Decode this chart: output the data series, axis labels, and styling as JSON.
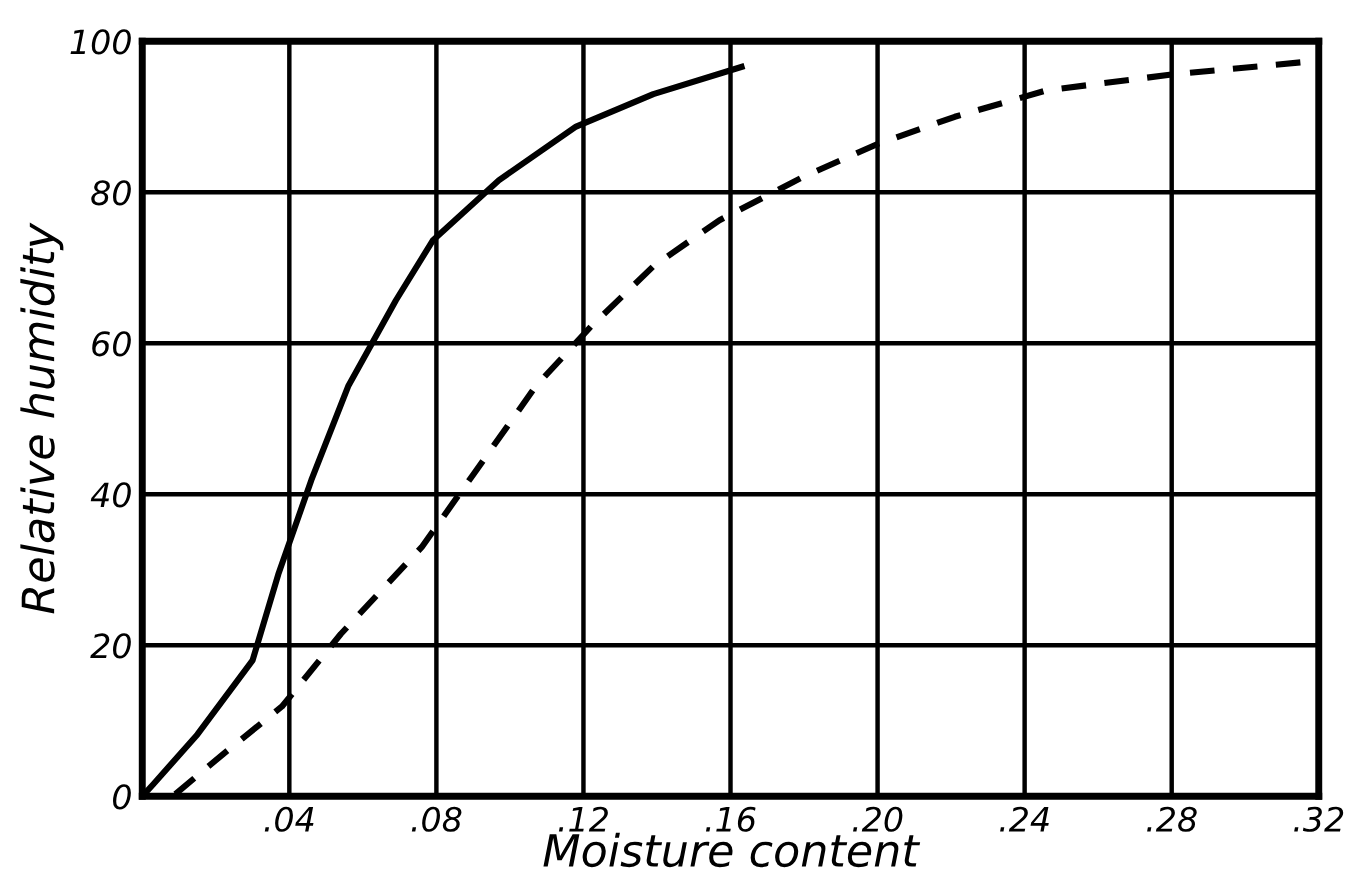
{
  "chart_data": {
    "type": "line",
    "xlabel": "Moisture content",
    "ylabel": "Relative humidity",
    "xlim": [
      0,
      0.32
    ],
    "ylim": [
      0,
      100
    ],
    "xticks": [
      {
        "value": 0.04,
        "label": ".04"
      },
      {
        "value": 0.08,
        "label": ".08"
      },
      {
        "value": 0.12,
        "label": ".12"
      },
      {
        "value": 0.16,
        "label": ".16"
      },
      {
        "value": 0.2,
        "label": ".20"
      },
      {
        "value": 0.24,
        "label": ".24"
      },
      {
        "value": 0.28,
        "label": ".28"
      },
      {
        "value": 0.32,
        "label": ".32"
      }
    ],
    "yticks": [
      0,
      20,
      40,
      60,
      80,
      100
    ],
    "grid": true,
    "marker": "none",
    "series": [
      {
        "color": "#000000",
        "line_style": "solid",
        "x": [
          0,
          0.003,
          0.015,
          0.03,
          0.037,
          0.046,
          0.056,
          0.069,
          0.079,
          0.097,
          0.118,
          0.139,
          0.163
        ],
        "values": [
          0,
          1.6,
          8.2,
          18,
          29.4,
          41.9,
          54.3,
          65.7,
          73.6,
          81.6,
          88.7,
          93,
          96.6
        ]
      },
      {
        "color": "#000000",
        "line_style": "dashed",
        "x": [
          0.009,
          0.022,
          0.038,
          0.054,
          0.076,
          0.09,
          0.107,
          0.122,
          0.139,
          0.157,
          0.18,
          0.2,
          0.221,
          0.246,
          0.28,
          0.315
        ],
        "values": [
          0.3,
          5.6,
          11.9,
          21.5,
          33,
          42.6,
          54.3,
          62.2,
          70.2,
          76.3,
          82.1,
          86.4,
          90,
          93.5,
          95.6,
          97.2
        ]
      }
    ]
  }
}
